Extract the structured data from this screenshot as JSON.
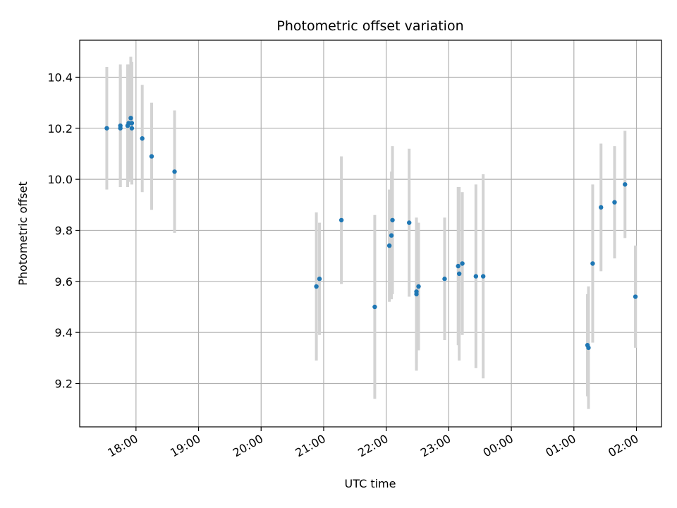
{
  "chart_data": {
    "type": "scatter",
    "title": "Photometric offset variation",
    "xlabel": "UTC time",
    "ylabel": "Photometric offset",
    "x_axis": "time",
    "xlim": [
      "17:06",
      "02:24"
    ],
    "ylim": [
      9.03,
      10.545
    ],
    "x_ticks": [
      "18:00",
      "19:00",
      "20:00",
      "21:00",
      "22:00",
      "23:00",
      "00:00",
      "01:00",
      "02:00"
    ],
    "y_ticks": [
      9.2,
      9.4,
      9.6,
      9.8,
      10.0,
      10.2,
      10.4
    ],
    "grid": true,
    "colors": {
      "point": "#1f77b4",
      "errorbar": "#d3d3d3",
      "grid": "#b0b0b0"
    },
    "points": [
      {
        "x": "17:32",
        "y": 10.2,
        "err": 0.24
      },
      {
        "x": "17:45",
        "y": 10.21,
        "err": 0.24
      },
      {
        "x": "17:45",
        "y": 10.2,
        "err": 0.23
      },
      {
        "x": "17:52",
        "y": 10.21,
        "err": 0.24
      },
      {
        "x": "17:53",
        "y": 10.22,
        "err": 0.23
      },
      {
        "x": "17:55",
        "y": 10.24,
        "err": 0.24
      },
      {
        "x": "17:56",
        "y": 10.22,
        "err": 0.24
      },
      {
        "x": "17:56",
        "y": 10.2,
        "err": 0.22
      },
      {
        "x": "18:06",
        "y": 10.16,
        "err": 0.21
      },
      {
        "x": "18:15",
        "y": 10.09,
        "err": 0.21
      },
      {
        "x": "18:37",
        "y": 10.03,
        "err": 0.24
      },
      {
        "x": "20:53",
        "y": 9.58,
        "err": 0.29
      },
      {
        "x": "20:56",
        "y": 9.61,
        "err": 0.22
      },
      {
        "x": "21:17",
        "y": 9.84,
        "err": 0.25
      },
      {
        "x": "21:49",
        "y": 9.5,
        "err": 0.36
      },
      {
        "x": "22:03",
        "y": 9.74,
        "err": 0.22
      },
      {
        "x": "22:05",
        "y": 9.78,
        "err": 0.25
      },
      {
        "x": "22:06",
        "y": 9.84,
        "err": 0.29
      },
      {
        "x": "22:22",
        "y": 9.83,
        "err": 0.29
      },
      {
        "x": "22:29",
        "y": 9.55,
        "err": 0.3
      },
      {
        "x": "22:29",
        "y": 9.56,
        "err": 0.28
      },
      {
        "x": "22:31",
        "y": 9.58,
        "err": 0.25
      },
      {
        "x": "22:56",
        "y": 9.61,
        "err": 0.24
      },
      {
        "x": "23:09",
        "y": 9.66,
        "err": 0.31
      },
      {
        "x": "23:10",
        "y": 9.63,
        "err": 0.34
      },
      {
        "x": "23:13",
        "y": 9.67,
        "err": 0.28
      },
      {
        "x": "23:26",
        "y": 9.62,
        "err": 0.36
      },
      {
        "x": "23:33",
        "y": 9.62,
        "err": 0.4
      },
      {
        "x": "01:13",
        "y": 9.35,
        "err": 0.2
      },
      {
        "x": "01:14",
        "y": 9.34,
        "err": 0.24
      },
      {
        "x": "01:18",
        "y": 9.67,
        "err": 0.31
      },
      {
        "x": "01:26",
        "y": 9.89,
        "err": 0.25
      },
      {
        "x": "01:39",
        "y": 9.91,
        "err": 0.22
      },
      {
        "x": "01:49",
        "y": 9.98,
        "err": 0.21
      },
      {
        "x": "01:59",
        "y": 9.54,
        "err": 0.2
      }
    ]
  }
}
